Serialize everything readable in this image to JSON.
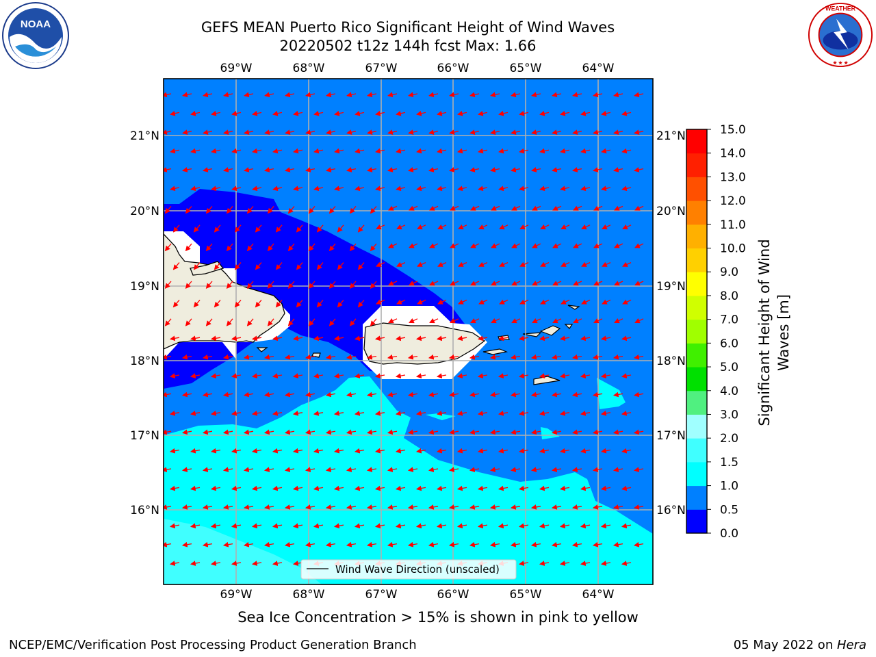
{
  "header": {
    "title_line1": "GEFS MEAN Puerto Rico Significant Height of Wind Waves",
    "title_line2": "20220502 t12z 144h fcst   Max: 1.66"
  },
  "logos": {
    "left": "NOAA",
    "right": "NATIONAL WEATHER SERVICE"
  },
  "map": {
    "lon_ticks": [
      "69°W",
      "68°W",
      "67°W",
      "66°W",
      "65°W",
      "64°W"
    ],
    "lat_ticks": [
      "21°N",
      "20°N",
      "19°N",
      "18°N",
      "17°N",
      "16°N"
    ],
    "legend_label": "Wind Wave Direction (unscaled)",
    "arrow_color": "#ff0000",
    "land_color": "#efedde",
    "ice_free_white": "#ffffff"
  },
  "colorbar": {
    "label": "Significant Height of Wind Waves [m]",
    "label_line1": "Significant Height of Wind",
    "label_line2": "Waves [m]",
    "ticks": [
      "0.0",
      "0.5",
      "1.0",
      "1.5",
      "2.0",
      "3.0",
      "4.0",
      "5.0",
      "6.0",
      "7.0",
      "8.0",
      "9.0",
      "10.0",
      "11.0",
      "12.0",
      "13.0",
      "14.0",
      "15.0"
    ],
    "colors": [
      "#0000ff",
      "#0080ff",
      "#00ffff",
      "#40ffff",
      "#a0ffff",
      "#50f080",
      "#00e000",
      "#40f000",
      "#a0ff00",
      "#d0ff00",
      "#ffff00",
      "#ffd000",
      "#ffb000",
      "#ff8000",
      "#ff5000",
      "#ff2000",
      "#ff0000"
    ]
  },
  "ice_note": "Sea Ice Concentration > 15% is shown in pink to yellow",
  "footer": {
    "left": "NCEP/EMC/Verification Post Processing Product Generation Branch",
    "date": "05 May 2022 on ",
    "host": "Hera"
  }
}
